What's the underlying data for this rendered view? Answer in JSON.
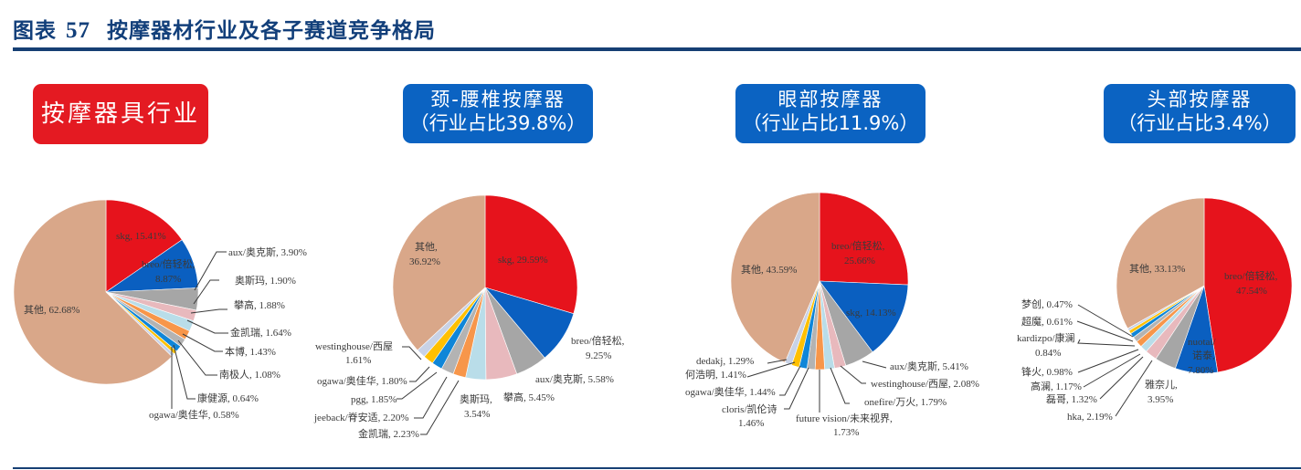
{
  "header": {
    "figure_label": "图表",
    "figure_number": "57",
    "title": "按摩器材行业及各子赛道竞争格局"
  },
  "colors": {
    "title_blue": "#123f7a",
    "badge_red": "#e41a22",
    "badge_blue": "#0b63c2",
    "slice_red": "#e6131c",
    "slice_blue": "#0a5fc0",
    "slice_gray": "#a6a6a6",
    "slice_pink": "#e8b9bd",
    "slice_lightblue": "#b9dde9",
    "slice_orange": "#f7964a",
    "slice_gray2": "#b3b3b3",
    "slice_blue2": "#0f86d8",
    "slice_yellow": "#ffc000",
    "slice_lavender": "#c8d2e6",
    "slice_tan": "#d9a789"
  },
  "badges": {
    "massage_industry": {
      "line1": "按摩器具行业"
    },
    "neck_waist": {
      "line1": "颈-腰椎按摩器",
      "line2": "（行业占比39.8%）"
    },
    "eye": {
      "line1": "眼部按摩器",
      "line2": "（行业占比11.9%）"
    },
    "head": {
      "line1": "头部按摩器",
      "line2": "（行业占比3.4%）"
    }
  },
  "chart_data": [
    {
      "type": "pie",
      "title": "按摩器具行业",
      "categories": [
        "skg",
        "breo/倍轻松",
        "aux/奥克斯",
        "奥斯玛",
        "攀高",
        "金凯瑞",
        "本博",
        "南极人",
        "康健源",
        "ogawa/奥佳华",
        "其他"
      ],
      "values": [
        15.41,
        8.87,
        3.9,
        1.9,
        1.88,
        1.64,
        1.43,
        1.08,
        0.64,
        0.58,
        62.68
      ],
      "labels": [
        "skg, 15.41%",
        "breo/倍轻松,",
        "8.87%",
        "aux/奥克斯, 3.90%",
        "奥斯玛, 1.90%",
        "攀高, 1.88%",
        "金凯瑞, 1.64%",
        "本博, 1.43%",
        "南极人, 1.08%",
        "康健源, 0.64%",
        "ogawa/奥佳华, 0.58%",
        "其他, 62.68%"
      ]
    },
    {
      "type": "pie",
      "title": "颈-腰椎按摩器（行业占比39.8%）",
      "categories": [
        "skg",
        "breo/倍轻松",
        "aux/奥克斯",
        "攀高",
        "奥斯玛",
        "金凯瑞",
        "jeeback/脊安适",
        "pgg",
        "ogawa/奥佳华",
        "westinghouse/西屋",
        "其他"
      ],
      "values": [
        29.59,
        9.25,
        5.58,
        5.45,
        3.54,
        2.23,
        2.2,
        1.85,
        1.8,
        1.61,
        36.92
      ],
      "labels": [
        "skg, 29.59%",
        "breo/倍轻松,",
        "9.25%",
        "aux/奥克斯, 5.58%",
        "攀高, 5.45%",
        "奥斯玛,",
        "3.54%",
        "金凯瑞, 2.23%",
        "jeeback/脊安适, 2.20%",
        "pgg, 1.85%",
        "ogawa/奥佳华, 1.80%",
        "westinghouse/西屋",
        "1.61%",
        "其他,",
        "36.92%"
      ]
    },
    {
      "type": "pie",
      "title": "眼部按摩器（行业占比11.9%）",
      "categories": [
        "breo/倍轻松",
        "skg",
        "aux/奥克斯",
        "westinghouse/西屋",
        "onefire/万火",
        "future vision/未来视界",
        "cloris/凯伦诗",
        "ogawa/奥佳华",
        "何浩明",
        "dedakj",
        "其他"
      ],
      "values": [
        25.66,
        14.13,
        5.41,
        2.08,
        1.79,
        1.73,
        1.46,
        1.44,
        1.41,
        1.29,
        43.59
      ],
      "labels": [
        "breo/倍轻松,",
        "25.66%",
        "skg, 14.13%",
        "aux/奥克斯, 5.41%",
        "westinghouse/西屋, 2.08%",
        "onefire/万火, 1.79%",
        "future vision/未来视界,",
        "1.73%",
        "cloris/凯伦诗",
        "1.46%",
        "ogawa/奥佳华, 1.44%",
        "何浩明, 1.41%",
        "dedakj, 1.29%",
        "其他, 43.59%"
      ]
    },
    {
      "type": "pie",
      "title": "头部按摩器（行业占比3.4%）",
      "categories": [
        "breo/倍轻松",
        "nuotai/诺泰",
        "雅奈儿",
        "hka",
        "磊哥",
        "高澜",
        "锋火",
        "kardizpo/康澜",
        "超魔",
        "梦创",
        "其他"
      ],
      "values": [
        47.54,
        7.8,
        3.95,
        2.19,
        1.32,
        1.17,
        0.98,
        0.84,
        0.61,
        0.47,
        33.13
      ],
      "labels": [
        "breo/倍轻松,",
        "47.54%",
        "nuotai/",
        "诺泰,",
        "7.80%",
        "雅奈儿,",
        "3.95%",
        "hka, 2.19%",
        "磊哥, 1.32%",
        "高澜, 1.17%",
        "锋火, 0.98%",
        "kardizpo/康澜",
        "0.84%",
        "超魔, 0.61%",
        "梦创, 0.47%",
        "其他, 33.13%"
      ]
    }
  ]
}
